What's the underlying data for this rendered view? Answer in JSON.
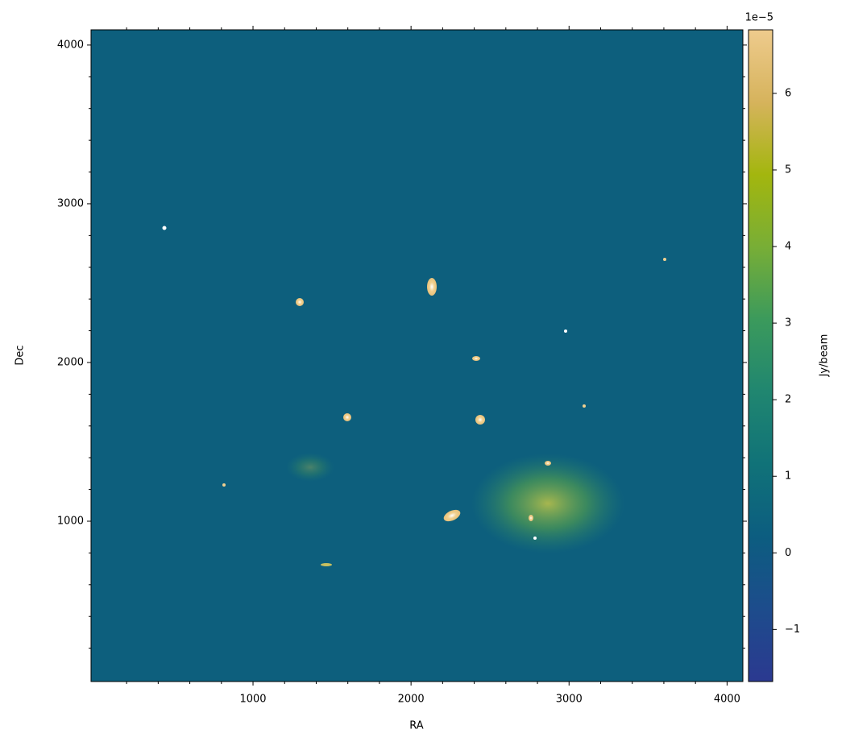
{
  "chart_data": {
    "type": "image",
    "xlabel": "RA",
    "ylabel": "Dec",
    "xlim": [
      -25,
      4100
    ],
    "ylim": [
      -10,
      4096
    ],
    "xticks": [
      1000,
      2000,
      3000,
      4000
    ],
    "yticks": [
      1000,
      2000,
      3000,
      4000
    ],
    "xminorticks": [
      200,
      400,
      600,
      800,
      1200,
      1400,
      1600,
      1800,
      2200,
      2400,
      2600,
      2800,
      3200,
      3400,
      3600,
      3800
    ],
    "yminorticks": [
      200,
      400,
      600,
      800,
      1200,
      1400,
      1600,
      1800,
      2200,
      2400,
      2600,
      2800,
      3200,
      3400,
      3600,
      3800
    ],
    "colorbar_label": "Jy/beam",
    "colorbar_offset": "1e−5",
    "clim": [
      -1.68,
      6.83
    ],
    "cticks": [
      {
        "value": -1,
        "label": "−1"
      },
      0,
      1,
      2,
      3,
      4,
      5,
      6
    ],
    "colormap": [
      "#2b3990",
      "#1d4c8c",
      "#0c5d80",
      "#107278",
      "#208670",
      "#3b9a5c",
      "#78ae36",
      "#a3b60e",
      "#d6b35c",
      "#eecb8d"
    ],
    "background_color": "#0d5f7d"
  }
}
